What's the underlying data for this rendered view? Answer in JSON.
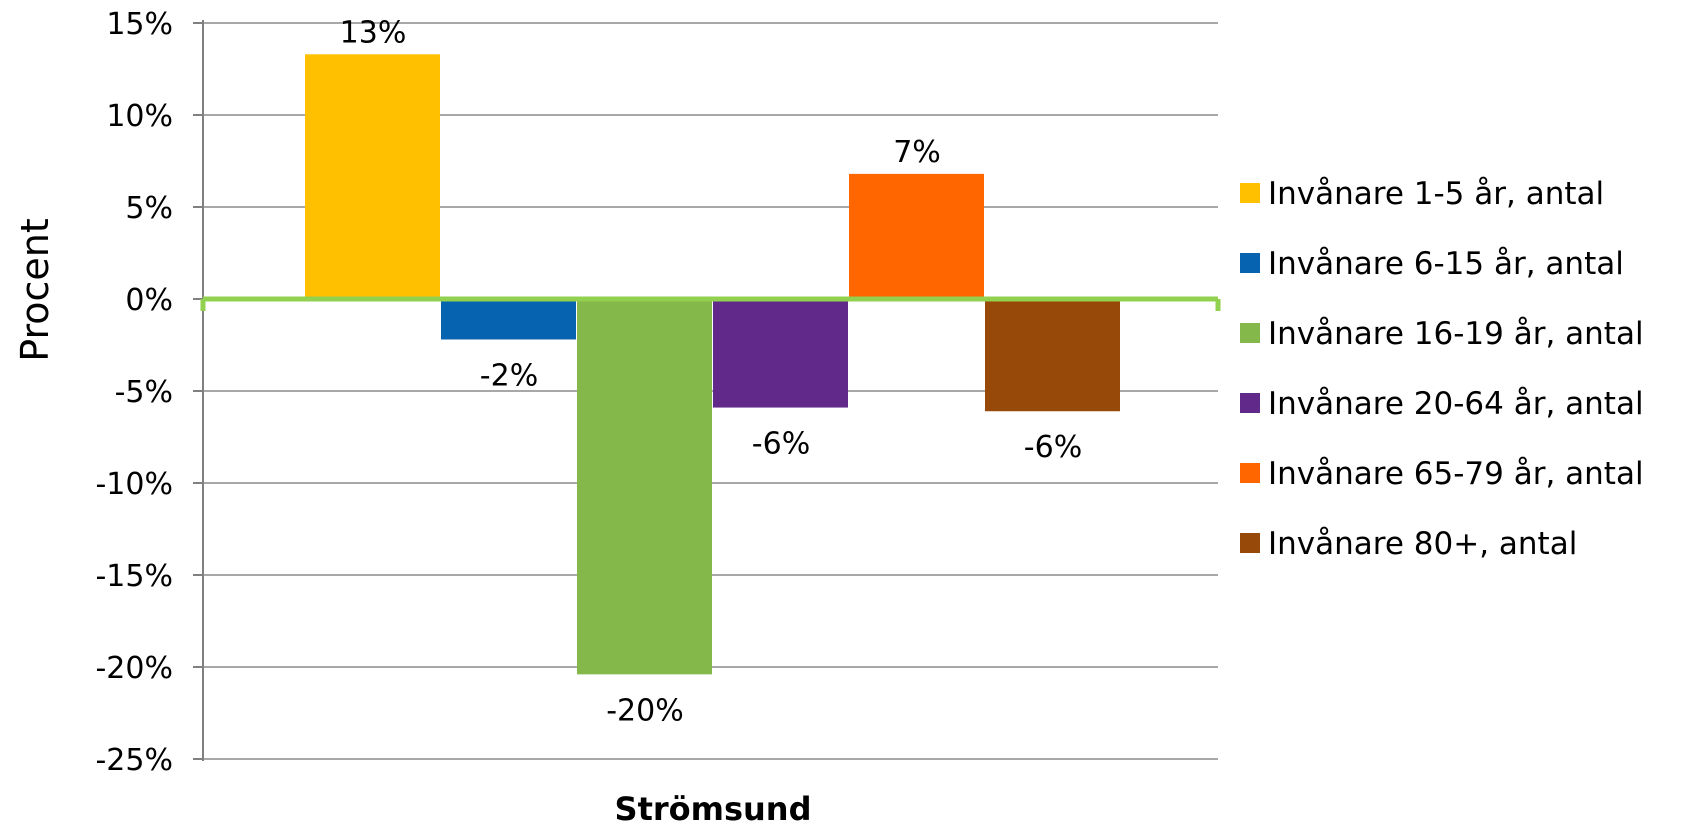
{
  "chart_data": {
    "type": "bar",
    "categories": [
      "Strömsund"
    ],
    "ylabel": "Procent",
    "ylim": [
      -25,
      15
    ],
    "yticks": [
      15,
      10,
      5,
      0,
      -5,
      -10,
      -15,
      -20,
      -25
    ],
    "ytick_labels": [
      "15%",
      "10%",
      "5%",
      "0%",
      "-5%",
      "-10%",
      "-15%",
      "-20%",
      "-25%"
    ],
    "grid": true,
    "legend_position": "right",
    "series": [
      {
        "name": "Invånare 1-5 år, antal",
        "values": [
          13.3
        ],
        "label": "13%",
        "color": "#FFC000"
      },
      {
        "name": "Invånare 6-15 år, antal",
        "values": [
          -2.2
        ],
        "label": "-2%",
        "color": "#0563B0"
      },
      {
        "name": "Invånare 16-19 år, antal",
        "values": [
          -20.4
        ],
        "label": "-20%",
        "color": "#84B84A"
      },
      {
        "name": "Invånare 20-64 år, antal",
        "values": [
          -5.9
        ],
        "label": "-6%",
        "color": "#612A8A"
      },
      {
        "name": "Invånare 65-79 år, antal",
        "values": [
          6.8
        ],
        "label": "7%",
        "color": "#FF6600"
      },
      {
        "name": "Invånare 80+, antal",
        "values": [
          -6.1
        ],
        "label": "-6%",
        "color": "#964908"
      }
    ],
    "zero_line_color": "#92D050"
  }
}
